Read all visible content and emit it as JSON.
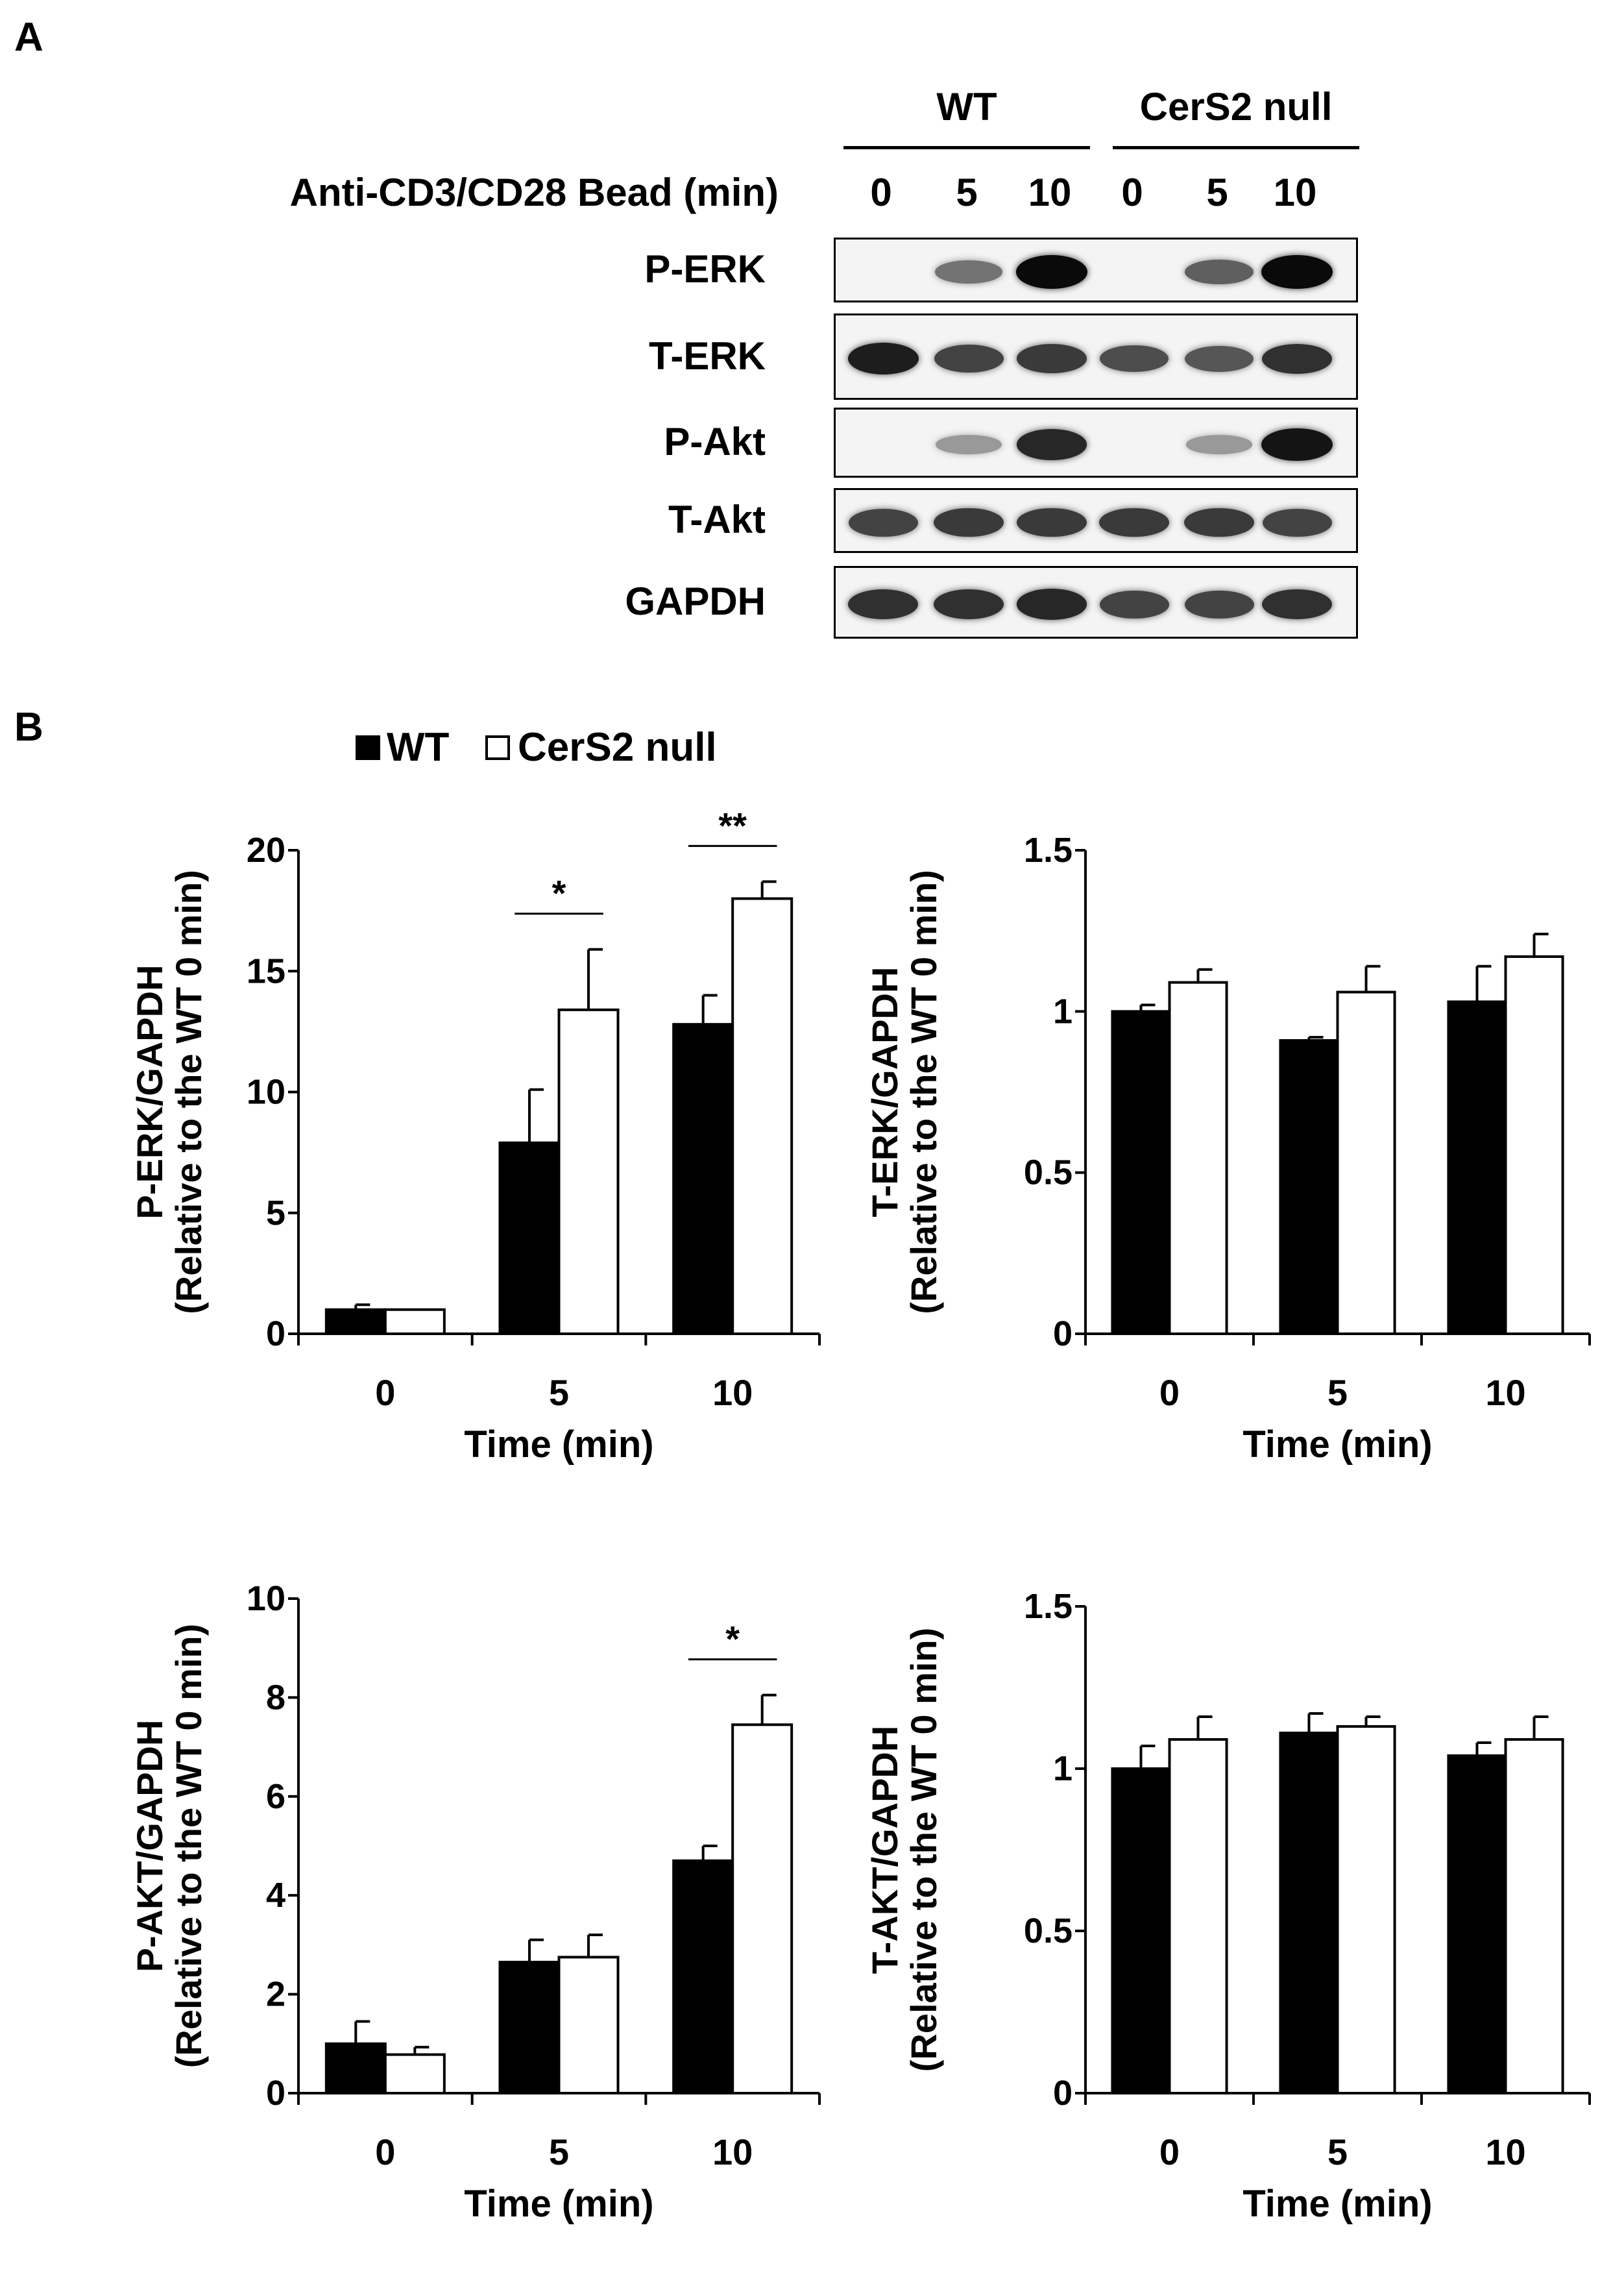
{
  "panel_a": {
    "letter": "A",
    "groups": [
      "WT",
      "CerS2 null"
    ],
    "treatment_label": "Anti-CD3/CD28 Bead (min)",
    "time_points": [
      "0",
      "5",
      "10",
      "0",
      "5",
      "10"
    ],
    "blots": [
      {
        "label": "P-ERK",
        "intensity": [
          0.0,
          0.45,
          1.0,
          0.0,
          0.55,
          1.0
        ]
      },
      {
        "label": "T-ERK",
        "intensity": [
          0.9,
          0.7,
          0.75,
          0.65,
          0.6,
          0.8
        ]
      },
      {
        "label": "P-Akt",
        "intensity": [
          0.0,
          0.25,
          0.85,
          0.0,
          0.25,
          0.95
        ]
      },
      {
        "label": "T-Akt",
        "intensity": [
          0.7,
          0.75,
          0.75,
          0.75,
          0.75,
          0.7
        ]
      },
      {
        "label": "GAPDH",
        "intensity": [
          0.8,
          0.8,
          0.85,
          0.7,
          0.7,
          0.8
        ]
      }
    ]
  },
  "panel_b": {
    "letter": "B",
    "legend": [
      {
        "name": "WT",
        "color": "#000000"
      },
      {
        "name": "CerS2 null",
        "color": "#ffffff"
      }
    ]
  },
  "chart_data": [
    {
      "type": "bar",
      "categories": [
        "0",
        "5",
        "10"
      ],
      "series": [
        {
          "name": "WT",
          "values": [
            1.0,
            7.9,
            12.8
          ],
          "errors": [
            0.2,
            2.2,
            1.2
          ]
        },
        {
          "name": "CerS2 null",
          "values": [
            1.0,
            13.4,
            18.0
          ],
          "errors": [
            0.0,
            2.5,
            0.7
          ]
        }
      ],
      "xlabel": "Time (min)",
      "ylabel_line1": "P-ERK/GAPDH",
      "ylabel_line2": "(Relative to the WT 0 min)",
      "ylim": [
        0,
        20
      ],
      "yticks": [
        0,
        5,
        10,
        15,
        20
      ],
      "ytick_labels": [
        "0",
        "5",
        "10",
        "15",
        "20"
      ],
      "significance": [
        {
          "category_index": 1,
          "label": "*"
        },
        {
          "category_index": 2,
          "label": "**"
        }
      ]
    },
    {
      "type": "bar",
      "categories": [
        "0",
        "5",
        "10"
      ],
      "series": [
        {
          "name": "WT",
          "values": [
            1.0,
            0.91,
            1.03
          ],
          "errors": [
            0.02,
            0.01,
            0.11
          ]
        },
        {
          "name": "CerS2 null",
          "values": [
            1.09,
            1.06,
            1.17
          ],
          "errors": [
            0.04,
            0.08,
            0.07
          ]
        }
      ],
      "xlabel": "Time (min)",
      "ylabel_line1": "T-ERK/GAPDH",
      "ylabel_line2": "(Relative to the WT 0 min)",
      "ylim": [
        0,
        1.5
      ],
      "yticks": [
        0,
        0.5,
        1,
        1.5
      ],
      "ytick_labels": [
        "0",
        "0.5",
        "1",
        "1.5"
      ],
      "significance": []
    },
    {
      "type": "bar",
      "categories": [
        "0",
        "5",
        "10"
      ],
      "series": [
        {
          "name": "WT",
          "values": [
            1.0,
            2.65,
            4.7
          ],
          "errors": [
            0.45,
            0.45,
            0.3
          ]
        },
        {
          "name": "CerS2 null",
          "values": [
            0.78,
            2.75,
            7.45
          ],
          "errors": [
            0.15,
            0.45,
            0.6
          ]
        }
      ],
      "xlabel": "Time (min)",
      "ylabel_line1": "P-AKT/GAPDH",
      "ylabel_line2": "(Relative to the WT 0 min)",
      "ylim": [
        0,
        10
      ],
      "yticks": [
        0,
        2,
        4,
        6,
        8,
        10
      ],
      "ytick_labels": [
        "0",
        "2",
        "4",
        "6",
        "8",
        "10"
      ],
      "significance": [
        {
          "category_index": 2,
          "label": "*"
        }
      ]
    },
    {
      "type": "bar",
      "categories": [
        "0",
        "5",
        "10"
      ],
      "series": [
        {
          "name": "WT",
          "values": [
            1.0,
            1.11,
            1.04
          ],
          "errors": [
            0.07,
            0.06,
            0.04
          ]
        },
        {
          "name": "CerS2 null",
          "values": [
            1.09,
            1.13,
            1.09
          ],
          "errors": [
            0.07,
            0.03,
            0.07
          ]
        }
      ],
      "xlabel": "Time (min)",
      "ylabel_line1": "T-AKT/GAPDH",
      "ylabel_line2": "(Relative to the WT 0 min)",
      "ylim": [
        0,
        1.5
      ],
      "yticks": [
        0,
        0.5,
        1,
        1.5
      ],
      "ytick_labels": [
        "0",
        "0.5",
        "1",
        "1.5"
      ],
      "significance": []
    }
  ]
}
